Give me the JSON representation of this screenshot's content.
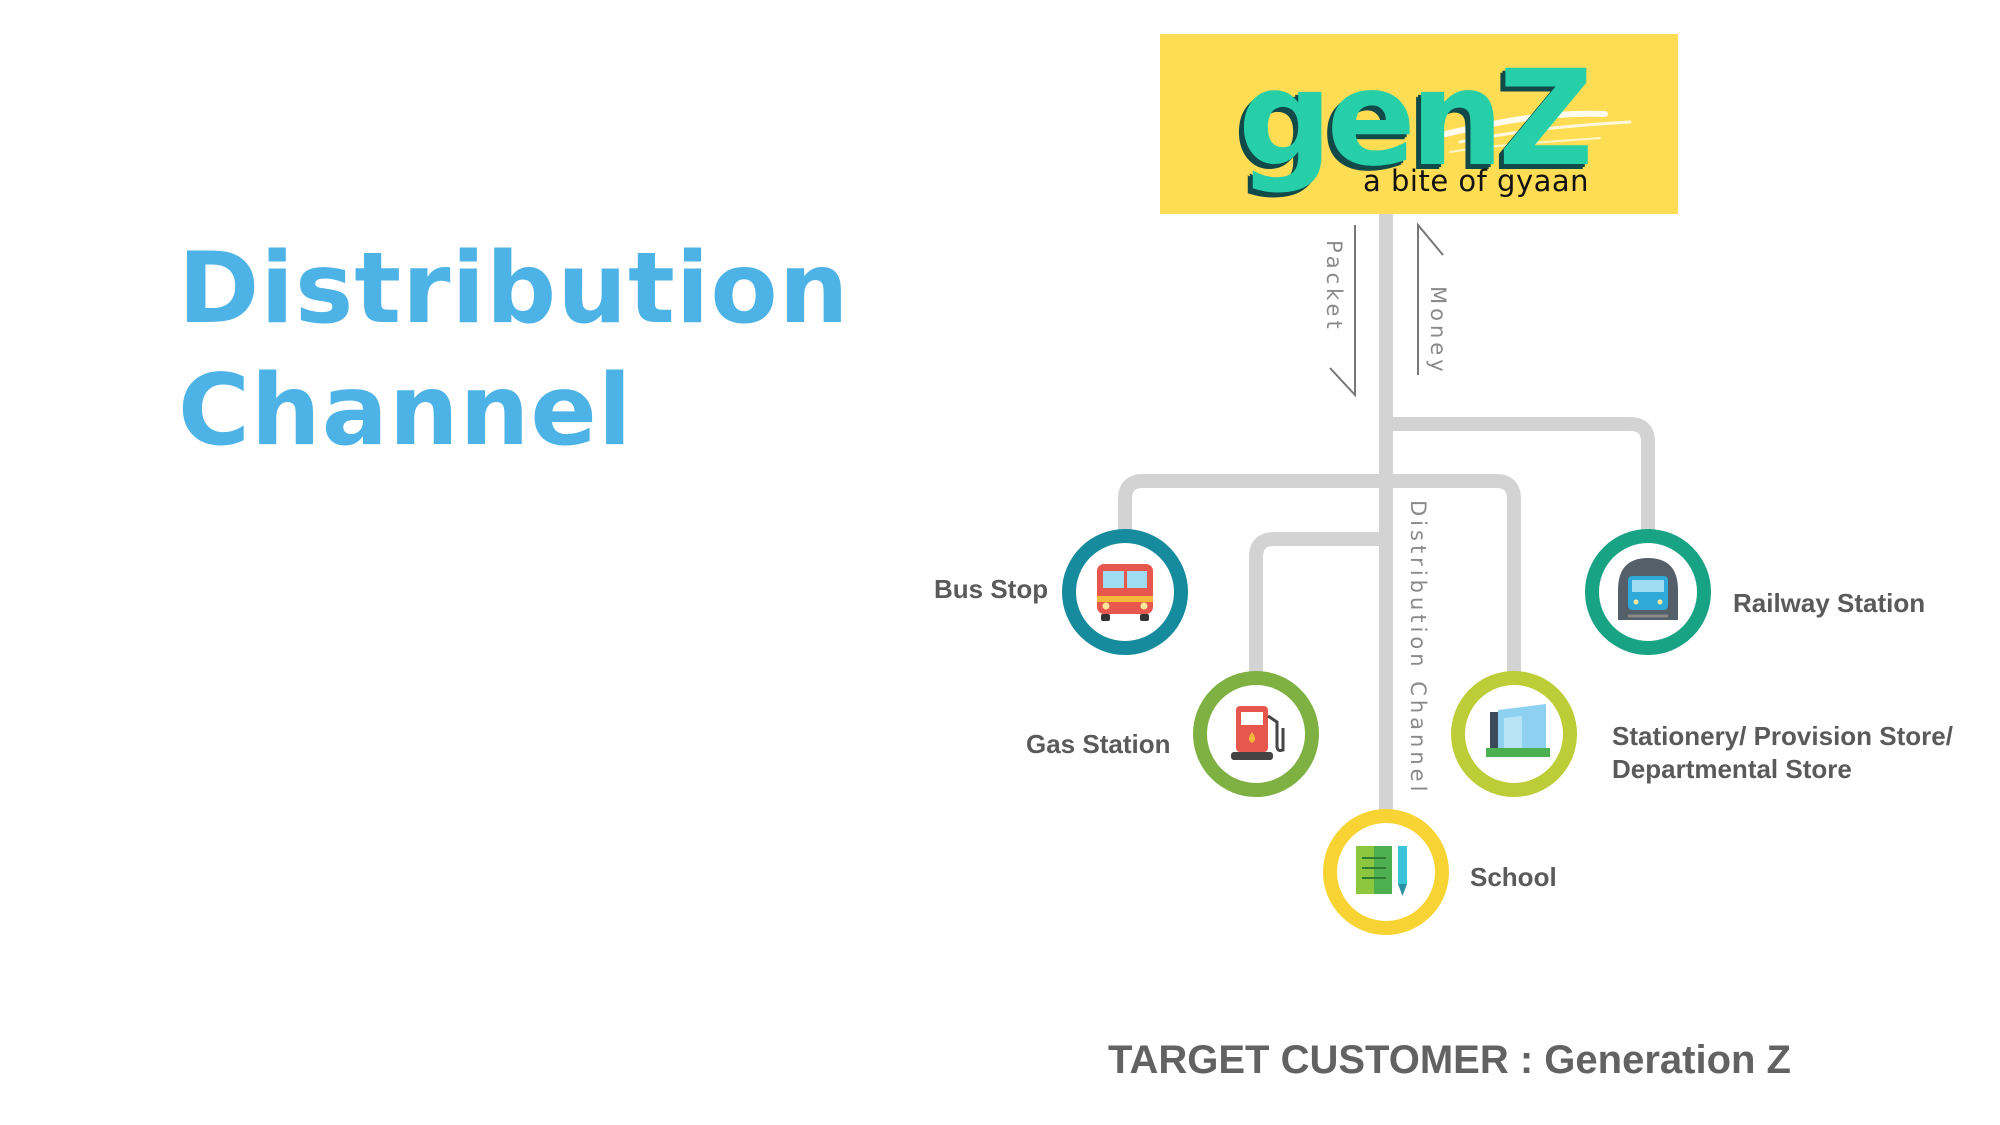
{
  "title": {
    "line1": "Distribution",
    "line2": "Channel"
  },
  "logo": {
    "wordmark": "genZ",
    "tagline": "a bite of gyaan",
    "bg_color": "#fedd55",
    "text_color": "#26cfa8"
  },
  "flow": {
    "packet": "Packet",
    "money": "Money",
    "channel": "Distribution Channel"
  },
  "nodes": [
    {
      "label": "Bus Stop",
      "icon": "bus-icon",
      "ring_color": "#168b9d"
    },
    {
      "label": "Gas Station",
      "icon": "fuel-pump-icon",
      "ring_color": "#7fb042"
    },
    {
      "label": "School",
      "icon": "books-pencil-icon",
      "ring_color": "#f7d433"
    },
    {
      "label": "Stationery/ Provision Store/",
      "label2": "Departmental Store",
      "icon": "store-icon",
      "ring_color": "#bccd37"
    },
    {
      "label": "Railway Station",
      "icon": "train-icon",
      "ring_color": "#17a384"
    }
  ],
  "footer": {
    "text": "TARGET CUSTOMER : Generation Z"
  }
}
